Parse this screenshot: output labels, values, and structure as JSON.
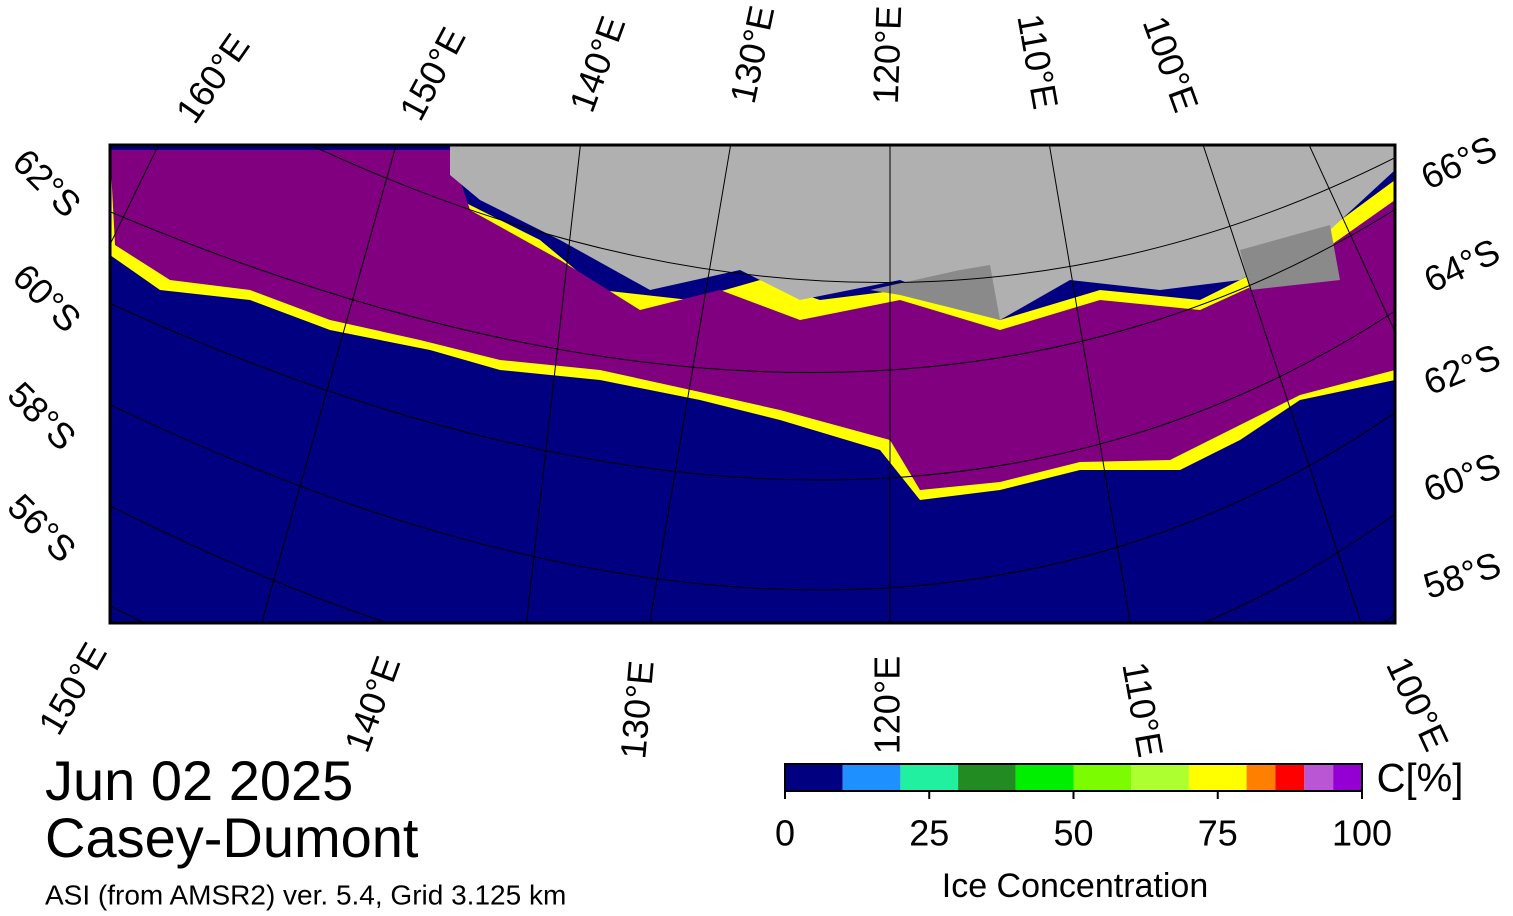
{
  "map": {
    "top_longitudes": [
      "160°E",
      "150°E",
      "140°E",
      "130°E",
      "120°E",
      "110°E",
      "100°E"
    ],
    "left_latitudes": [
      "62°S",
      "60°S",
      "58°S",
      "56°S"
    ],
    "right_latitudes": [
      "66°S",
      "64°S",
      "62°S",
      "60°S",
      "58°S"
    ],
    "bottom_longitudes": [
      "150°E",
      "140°E",
      "130°E",
      "120°E",
      "110°E",
      "100°E"
    ]
  },
  "date": "Jun 02 2025",
  "region": "Casey-Dumont",
  "source": "ASI (from AMSR2) ver. 5.4,  Grid 3.125 km",
  "colorbar": {
    "label": "Ice Concentration",
    "unit": "C[%]",
    "bounds": [
      0,
      10,
      20,
      30,
      40,
      50,
      60,
      70,
      80,
      85,
      90,
      95,
      100
    ],
    "colors": [
      "#000080",
      "#1e90ff",
      "#20f0a0",
      "#228b22",
      "#00ee00",
      "#7cfc00",
      "#adff2f",
      "#ffff00",
      "#ff8000",
      "#ff0000",
      "#ba55d3",
      "#9400d3"
    ],
    "ticks": [
      0,
      25,
      50,
      75,
      100
    ]
  }
}
